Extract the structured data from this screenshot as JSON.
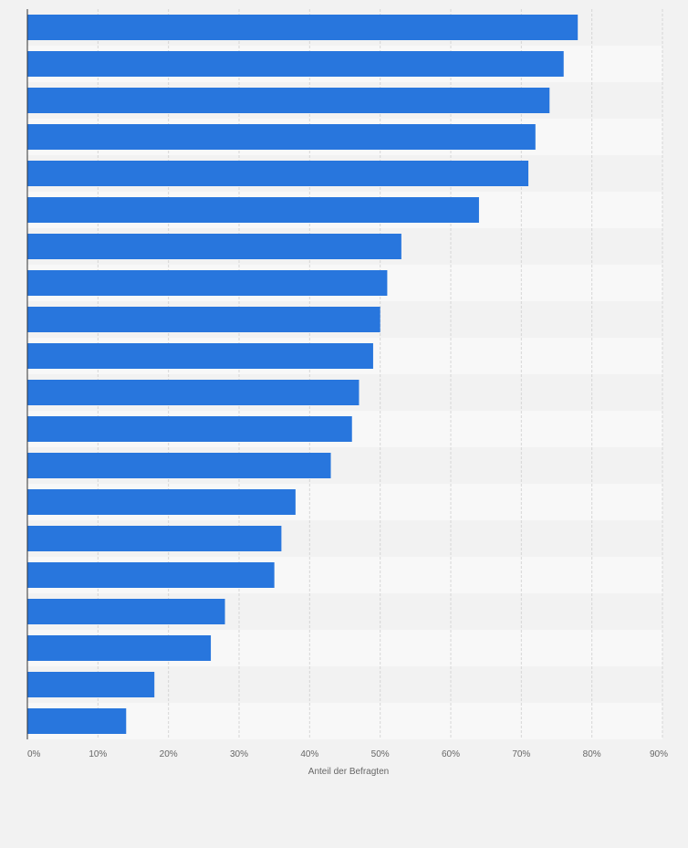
{
  "chart_data": {
    "type": "bar",
    "orientation": "horizontal",
    "categories": [
      "",
      "",
      "",
      "",
      "",
      "",
      "",
      "",
      "",
      "",
      "",
      "",
      "",
      "",
      "",
      "",
      "",
      "",
      "",
      ""
    ],
    "values": [
      78,
      76,
      74,
      72,
      71,
      64,
      53,
      51,
      50,
      49,
      47,
      46,
      43,
      38,
      36,
      35,
      28,
      26,
      18,
      14
    ],
    "title": "",
    "xlabel": "Anteil der Befragten",
    "ylabel": "",
    "xlim": [
      0,
      90
    ],
    "xticks": [
      0,
      10,
      20,
      30,
      40,
      50,
      60,
      70,
      80,
      90
    ],
    "xtick_labels": [
      "0%",
      "10%",
      "20%",
      "30%",
      "40%",
      "50%",
      "60%",
      "70%",
      "80%",
      "90%"
    ],
    "grid": true,
    "legend": "none"
  },
  "colors": {
    "bar": "#2876dd",
    "page_background": "#f2f2f2",
    "band_light": "#f8f8f8",
    "band_dark": "#f2f2f2",
    "grid": "#d6d6d6",
    "axis": "#333333",
    "text": "#666666"
  }
}
